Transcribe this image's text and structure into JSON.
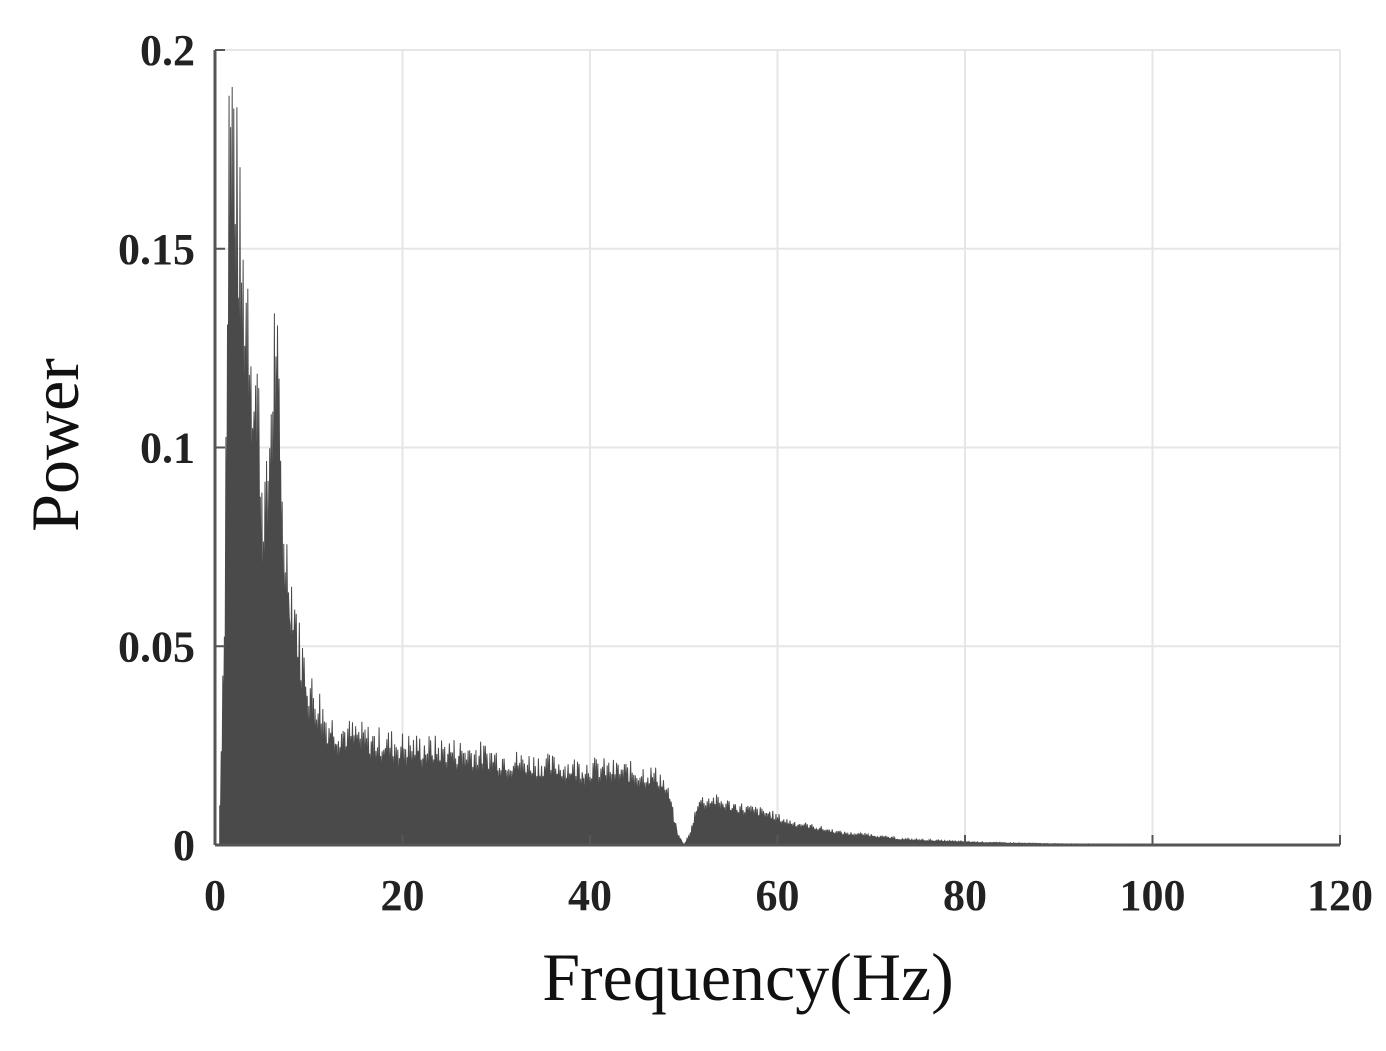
{
  "chart_data": {
    "type": "area",
    "title": "",
    "xlabel": "Frequency(Hz)",
    "ylabel": "Power",
    "xlim": [
      0,
      120
    ],
    "ylim": [
      0,
      0.2
    ],
    "x_ticks": [
      0,
      20,
      40,
      60,
      80,
      100,
      120
    ],
    "y_ticks": [
      0,
      0.05,
      0.1,
      0.15,
      0.2
    ],
    "x_tick_labels": [
      "0",
      "20",
      "40",
      "60",
      "80",
      "100",
      "120"
    ],
    "y_tick_labels": [
      "0",
      "0.05",
      "0.1",
      "0.15",
      "0.2"
    ],
    "grid": true,
    "legend": "none",
    "series": [
      {
        "color": "#4a4a4a",
        "x": [
          0.5,
          1.0,
          1.5,
          2.0,
          2.5,
          3.0,
          3.5,
          4.0,
          4.5,
          5.0,
          5.5,
          6.0,
          6.5,
          7.0,
          7.5,
          8.0,
          8.5,
          9.0,
          9.5,
          10.0,
          10.5,
          11.0,
          11.5,
          12.0,
          13.0,
          14.0,
          15.0,
          16.0,
          17.0,
          18.0,
          20.0,
          22.0,
          24.0,
          26.0,
          28.0,
          30.0,
          32.0,
          34.0,
          36.0,
          38.0,
          40.0,
          42.0,
          44.0,
          46.0,
          47.5,
          48.5,
          49.3,
          50.0,
          50.7,
          51.5,
          53.0,
          55.0,
          57.0,
          59.0,
          61.0,
          63.0,
          65.0,
          67.0,
          70.0,
          73.0,
          76.0,
          80.0,
          85.0,
          90.0,
          100.0,
          110.0,
          120.0
        ],
        "values": [
          0.01,
          0.06,
          0.18,
          0.182,
          0.155,
          0.14,
          0.138,
          0.12,
          0.115,
          0.09,
          0.085,
          0.11,
          0.132,
          0.09,
          0.075,
          0.065,
          0.06,
          0.05,
          0.045,
          0.04,
          0.037,
          0.036,
          0.033,
          0.03,
          0.029,
          0.028,
          0.0275,
          0.027,
          0.026,
          0.026,
          0.025,
          0.0245,
          0.024,
          0.0235,
          0.023,
          0.022,
          0.021,
          0.0205,
          0.02,
          0.0195,
          0.0195,
          0.019,
          0.0185,
          0.018,
          0.017,
          0.012,
          0.003,
          0.0,
          0.003,
          0.011,
          0.0115,
          0.01,
          0.009,
          0.008,
          0.006,
          0.005,
          0.004,
          0.003,
          0.0025,
          0.0015,
          0.0012,
          0.0008,
          0.0005,
          0.0003,
          0.0002,
          0.0001,
          0.0
        ]
      }
    ]
  }
}
